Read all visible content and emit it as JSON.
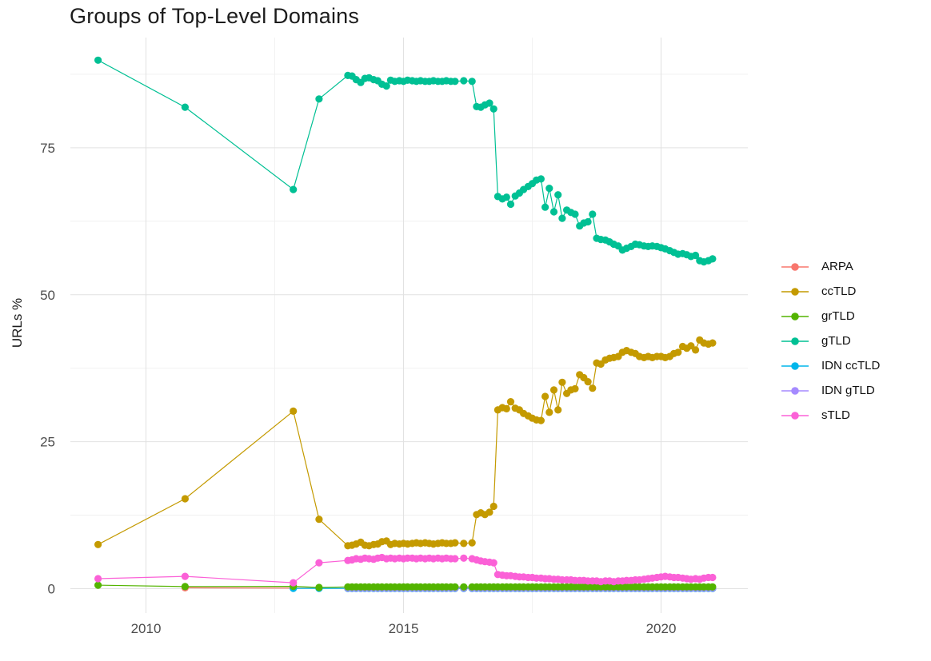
{
  "chart_data": {
    "type": "line",
    "title": "Groups of Top-Level Domains",
    "xlabel": "",
    "ylabel": "URLs %",
    "grid": true,
    "legend_position": "right",
    "x_ticks": [
      2010,
      2015,
      2020
    ],
    "x_minor_ticks": [
      2012.5,
      2017.5
    ],
    "y_ticks": [
      0,
      25,
      50,
      75
    ],
    "y_minor_ticks": [
      12.5,
      37.5,
      62.5,
      87.5
    ],
    "x_range": [
      2008.53,
      2021.68
    ],
    "y_range": [
      -4.2,
      93.7
    ],
    "x_dense": [
      2013.92,
      2014.0,
      2014.08,
      2014.17,
      2014.25,
      2014.33,
      2014.42,
      2014.5,
      2014.58,
      2014.67,
      2014.75,
      2014.83,
      2014.92,
      2015.0,
      2015.08,
      2015.17,
      2015.25,
      2015.33,
      2015.42,
      2015.5,
      2015.58,
      2015.67,
      2015.75,
      2015.83,
      2015.92,
      2016.0,
      2016.17,
      2016.33,
      2016.42,
      2016.5,
      2016.58,
      2016.67,
      2016.75,
      2016.83,
      2016.92,
      2017.0,
      2017.08,
      2017.17,
      2017.25,
      2017.33,
      2017.42,
      2017.5,
      2017.58,
      2017.67,
      2017.75,
      2017.83,
      2017.92,
      2018.0,
      2018.08,
      2018.17,
      2018.25,
      2018.33,
      2018.42,
      2018.5,
      2018.58,
      2018.67,
      2018.75,
      2018.83,
      2018.92,
      2019.0,
      2019.08,
      2019.17,
      2019.25,
      2019.33,
      2019.42,
      2019.5,
      2019.58,
      2019.67,
      2019.75,
      2019.83,
      2019.92,
      2020.0,
      2020.08,
      2020.17,
      2020.25,
      2020.33,
      2020.42,
      2020.5,
      2020.58,
      2020.67,
      2020.75,
      2020.83,
      2020.92,
      2021.0
    ],
    "draw_order": [
      0,
      4,
      5,
      2,
      6,
      1,
      3
    ],
    "series": [
      {
        "name": "ARPA",
        "color": "#F8766D",
        "early": [
          [
            2010.76,
            0.15
          ],
          [
            2012.86,
            0.1
          ],
          [
            2013.36,
            0.1
          ]
        ],
        "dense_const": 0.05
      },
      {
        "name": "ccTLD",
        "color": "#C49A00",
        "early": [
          [
            2009.07,
            7.5
          ],
          [
            2010.76,
            15.3
          ],
          [
            2012.86,
            30.2
          ],
          [
            2013.36,
            11.8
          ]
        ],
        "dense": [
          7.3,
          7.4,
          7.6,
          7.9,
          7.4,
          7.3,
          7.5,
          7.6,
          8.0,
          8.1,
          7.5,
          7.7,
          7.6,
          7.7,
          7.6,
          7.7,
          7.8,
          7.7,
          7.8,
          7.7,
          7.6,
          7.7,
          7.8,
          7.7,
          7.7,
          7.8,
          7.7,
          7.8,
          12.6,
          12.9,
          12.6,
          13.0,
          14.0,
          30.4,
          30.8,
          30.6,
          31.8,
          30.7,
          30.4,
          29.8,
          29.4,
          29.0,
          28.7,
          28.6,
          32.7,
          30.0,
          33.8,
          30.4,
          35.1,
          33.2,
          33.8,
          34.0,
          36.4,
          35.9,
          35.2,
          34.1,
          38.4,
          38.2,
          38.9,
          39.2,
          39.3,
          39.5,
          40.2,
          40.5,
          40.2,
          40.0,
          39.5,
          39.3,
          39.5,
          39.3,
          39.5,
          39.5,
          39.3,
          39.5,
          40.0,
          40.2,
          41.2,
          40.9,
          41.3,
          40.6,
          42.3,
          41.8,
          41.6,
          41.8
        ]
      },
      {
        "name": "grTLD",
        "color": "#53B400",
        "early": [
          [
            2009.07,
            0.6
          ],
          [
            2010.76,
            0.35
          ],
          [
            2012.86,
            0.4
          ],
          [
            2013.36,
            0.2
          ]
        ],
        "dense_const": 0.3
      },
      {
        "name": "gTLD",
        "color": "#00C094",
        "early": [
          [
            2009.07,
            89.9
          ],
          [
            2010.76,
            81.9
          ],
          [
            2012.86,
            67.9
          ],
          [
            2013.36,
            83.3
          ]
        ],
        "dense": [
          87.3,
          87.2,
          86.6,
          86.1,
          86.8,
          86.9,
          86.6,
          86.4,
          85.8,
          85.5,
          86.5,
          86.3,
          86.4,
          86.3,
          86.5,
          86.4,
          86.3,
          86.4,
          86.3,
          86.3,
          86.4,
          86.3,
          86.3,
          86.4,
          86.3,
          86.3,
          86.4,
          86.3,
          82.0,
          81.9,
          82.3,
          82.6,
          81.6,
          66.7,
          66.3,
          66.6,
          65.4,
          66.8,
          67.3,
          67.9,
          68.4,
          68.9,
          69.5,
          69.7,
          64.9,
          68.1,
          64.1,
          67.0,
          63.0,
          64.4,
          64.0,
          63.7,
          61.7,
          62.2,
          62.4,
          63.7,
          59.6,
          59.4,
          59.3,
          59.0,
          58.6,
          58.3,
          57.6,
          57.9,
          58.2,
          58.6,
          58.5,
          58.3,
          58.2,
          58.3,
          58.2,
          58.0,
          57.8,
          57.5,
          57.2,
          56.9,
          57.0,
          56.8,
          56.5,
          56.7,
          55.8,
          55.6,
          55.8,
          56.1
        ]
      },
      {
        "name": "IDN ccTLD",
        "color": "#00B6EB",
        "early": [
          [
            2012.86,
            0.05
          ],
          [
            2013.36,
            0.05
          ]
        ],
        "dense_const": 0.05
      },
      {
        "name": "IDN gTLD",
        "color": "#A58AFF",
        "early": [],
        "dense_const": 0.12
      },
      {
        "name": "sTLD",
        "color": "#FB61D7",
        "early": [
          [
            2009.07,
            1.7
          ],
          [
            2010.76,
            2.1
          ],
          [
            2012.86,
            1.0
          ],
          [
            2013.36,
            4.4
          ]
        ],
        "dense": [
          4.8,
          4.9,
          5.1,
          5.0,
          5.2,
          5.1,
          5.0,
          5.2,
          5.3,
          5.1,
          5.2,
          5.1,
          5.2,
          5.1,
          5.2,
          5.2,
          5.1,
          5.2,
          5.1,
          5.2,
          5.1,
          5.2,
          5.1,
          5.2,
          5.1,
          5.1,
          5.2,
          5.1,
          4.9,
          4.7,
          4.6,
          4.5,
          4.4,
          2.4,
          2.3,
          2.2,
          2.2,
          2.1,
          2.0,
          2.0,
          1.9,
          1.9,
          1.8,
          1.8,
          1.7,
          1.7,
          1.6,
          1.6,
          1.5,
          1.5,
          1.5,
          1.4,
          1.4,
          1.4,
          1.3,
          1.3,
          1.3,
          1.2,
          1.3,
          1.3,
          1.2,
          1.3,
          1.3,
          1.4,
          1.4,
          1.5,
          1.5,
          1.6,
          1.7,
          1.8,
          1.9,
          2.0,
          2.1,
          2.0,
          1.9,
          1.9,
          1.8,
          1.7,
          1.6,
          1.7,
          1.6,
          1.8,
          1.9,
          1.9
        ]
      }
    ],
    "style": {
      "grid_major_color": "#e2e2e2",
      "grid_minor_color": "#efefef",
      "tick_label_color": "#4d4d4d",
      "background": "#ffffff"
    }
  }
}
